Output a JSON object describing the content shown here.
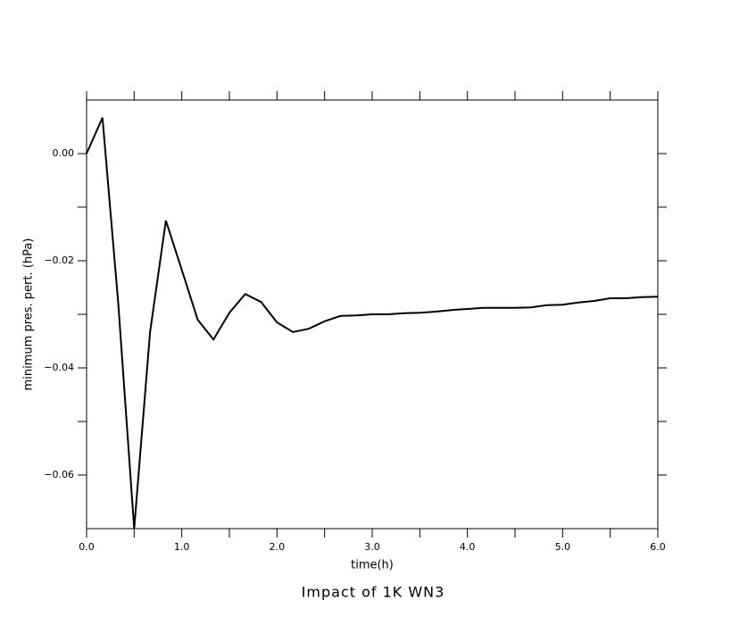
{
  "chart_data": {
    "type": "line",
    "title": "Impact of 1K WN3",
    "xlabel": "time(h)",
    "ylabel": "minimum pres. pert. (hPa)",
    "xlim": [
      0,
      6
    ],
    "ylim": [
      -0.07,
      0.01
    ],
    "xticks": [
      {
        "value": 0,
        "label": "0.0"
      },
      {
        "value": 1,
        "label": "1.0"
      },
      {
        "value": 2,
        "label": "2.0"
      },
      {
        "value": 3,
        "label": "3.0"
      },
      {
        "value": 4,
        "label": "4.0"
      },
      {
        "value": 5,
        "label": "5.0"
      },
      {
        "value": 6,
        "label": "6.0"
      }
    ],
    "xminorticks": [
      0.5,
      1.5,
      2.5,
      3.5,
      4.5,
      5.5
    ],
    "yticks": [
      {
        "value": 0,
        "label": "0.00"
      },
      {
        "value": -0.02,
        "label": "−0.02"
      },
      {
        "value": -0.04,
        "label": "−0.04"
      },
      {
        "value": -0.06,
        "label": "−0.06"
      }
    ],
    "yminorticks": [
      -0.01,
      -0.03,
      -0.05
    ],
    "grid": false,
    "series": [
      {
        "color": "#000000",
        "x": [
          0,
          0.167,
          0.333,
          0.5,
          0.667,
          0.833,
          1.0,
          1.167,
          1.333,
          1.5,
          1.667,
          1.833,
          2.0,
          2.167,
          2.333,
          2.5,
          2.667,
          2.833,
          3.0,
          3.167,
          3.333,
          3.5,
          3.667,
          3.833,
          4.0,
          4.167,
          4.333,
          4.5,
          4.667,
          4.833,
          5.0,
          5.167,
          5.333,
          5.5,
          5.667,
          5.833,
          6.0
        ],
        "values": [
          0,
          0.0067,
          -0.028,
          -0.07,
          -0.0333,
          -0.0125,
          -0.0217,
          -0.031,
          -0.0347,
          -0.0297,
          -0.0262,
          -0.0277,
          -0.0315,
          -0.0333,
          -0.0327,
          -0.0313,
          -0.0303,
          -0.0302,
          -0.03,
          -0.03,
          -0.0298,
          -0.0297,
          -0.0295,
          -0.0292,
          -0.029,
          -0.0288,
          -0.0288,
          -0.0288,
          -0.0287,
          -0.0283,
          -0.0282,
          -0.0278,
          -0.0275,
          -0.027,
          -0.027,
          -0.0268,
          -0.0267
        ]
      }
    ]
  }
}
